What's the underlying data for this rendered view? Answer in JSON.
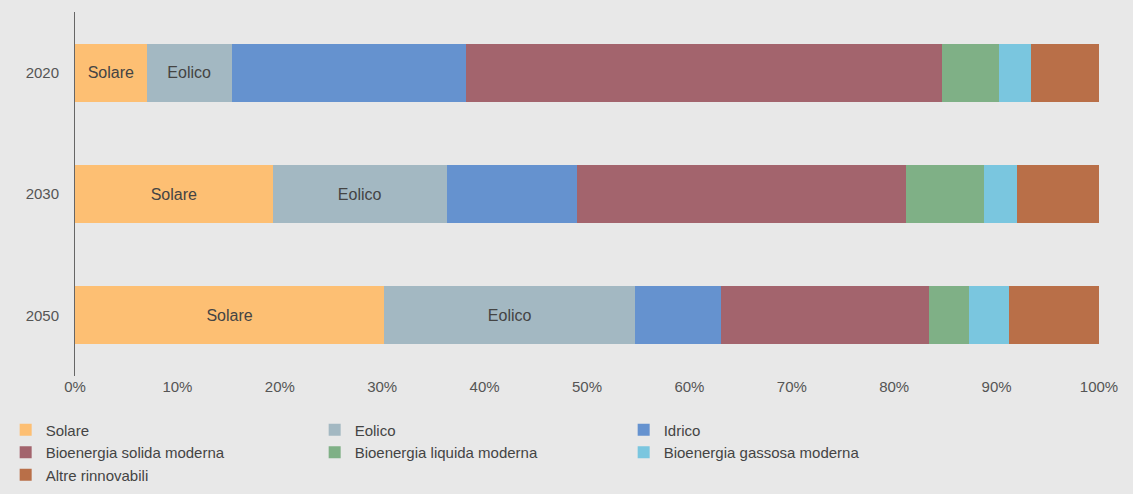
{
  "chart_data": {
    "type": "bar",
    "orientation": "horizontal",
    "stacked": true,
    "grid": false,
    "legend": "bottom",
    "categories": [
      "2020",
      "2030",
      "2050"
    ],
    "annotations": [
      "Solare",
      "Eolico"
    ],
    "series": [
      {
        "name": "Solare",
        "color": "#fdbf73",
        "values": [
          7.0,
          19.3,
          30.2
        ]
      },
      {
        "name": "Eolico",
        "color": "#a3b8c2",
        "values": [
          8.3,
          17.0,
          24.5
        ]
      },
      {
        "name": "Idrico",
        "color": "#6592cf",
        "values": [
          22.9,
          12.7,
          8.4
        ]
      },
      {
        "name": "Bioenergia solida moderna",
        "color": "#a3646d",
        "values": [
          46.5,
          32.2,
          20.3
        ]
      },
      {
        "name": "Bioenergia liquida moderna",
        "color": "#7fb086",
        "values": [
          5.5,
          7.6,
          3.9
        ]
      },
      {
        "name": "Bioenergia gassosa moderna",
        "color": "#7ac6df",
        "values": [
          3.2,
          3.2,
          3.9
        ]
      },
      {
        "name": "Altre rinnovabili",
        "color": "#b96f48",
        "values": [
          6.6,
          8.0,
          8.8
        ]
      }
    ],
    "xlim": [
      0,
      100
    ],
    "xticks": [
      {
        "value": 0,
        "label": "0%"
      },
      {
        "value": 10,
        "label": "10%"
      },
      {
        "value": 20,
        "label": "20%"
      },
      {
        "value": 30,
        "label": "30%"
      },
      {
        "value": 40,
        "label": "40%"
      },
      {
        "value": 50,
        "label": "50%"
      },
      {
        "value": 60,
        "label": "60%"
      },
      {
        "value": 70,
        "label": "70%"
      },
      {
        "value": 80,
        "label": "80%"
      },
      {
        "value": 90,
        "label": "90%"
      },
      {
        "value": 100,
        "label": "100%"
      }
    ]
  }
}
